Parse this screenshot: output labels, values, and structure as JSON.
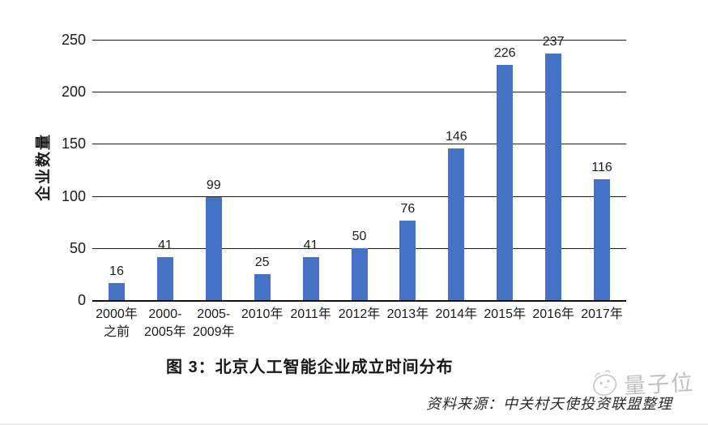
{
  "chart_data": {
    "type": "bar",
    "title": "图 3：北京人工智能企业成立时间分布",
    "ylabel": "企业数量",
    "xlabel": "",
    "categories": [
      "2000年之前",
      "2000-2005年",
      "2005-2009年",
      "2010年",
      "2011年",
      "2012年",
      "2013年",
      "2014年",
      "2015年",
      "2016年",
      "2017年"
    ],
    "categories_lines": [
      [
        "2000年",
        "之前"
      ],
      [
        "2000-",
        "2005年"
      ],
      [
        "2005-",
        "2009年"
      ],
      [
        "2010年"
      ],
      [
        "2011年"
      ],
      [
        "2012年"
      ],
      [
        "2013年"
      ],
      [
        "2014年"
      ],
      [
        "2015年"
      ],
      [
        "2016年"
      ],
      [
        "2017年"
      ]
    ],
    "values": [
      16,
      41,
      99,
      25,
      41,
      50,
      76,
      146,
      226,
      237,
      116
    ],
    "yticks": [
      0,
      50,
      100,
      150,
      200,
      250
    ],
    "ylim": [
      0,
      250
    ],
    "grid": true,
    "legend_position": "none",
    "bar_color": "#4472C4",
    "source": "资料来源：中关村天使投资联盟整理"
  },
  "watermark": {
    "brand": "量子位"
  }
}
